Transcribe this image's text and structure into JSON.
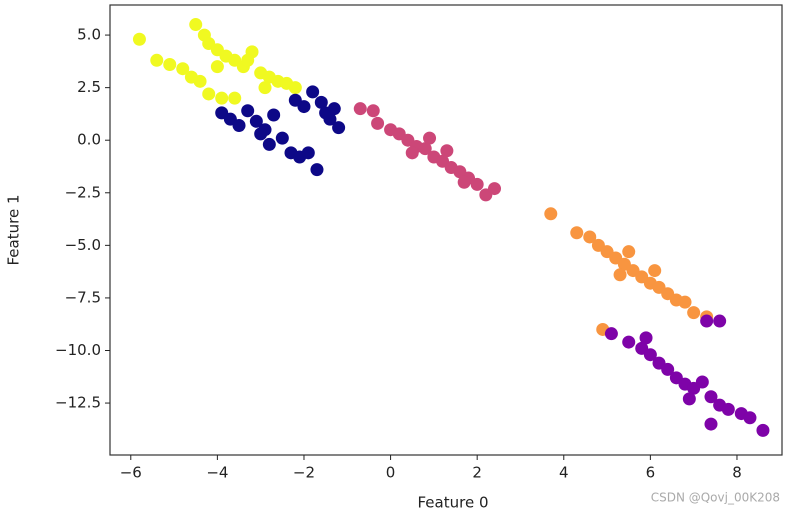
{
  "chart_data": {
    "type": "scatter",
    "x_label": "Feature 0",
    "y_label": "Feature 1",
    "xlim": [
      -6.48,
      9.04
    ],
    "ylim": [
      -14.97,
      6.43
    ],
    "xticks": [
      {
        "value": -6,
        "label": "−6"
      },
      {
        "value": -4,
        "label": "−4"
      },
      {
        "value": -2,
        "label": "−2"
      },
      0,
      2,
      4,
      6,
      8
    ],
    "yticks": [
      {
        "value": 5,
        "label": "5.0"
      },
      2.5,
      {
        "value": 0,
        "label": "0.0"
      },
      {
        "value": -2.5,
        "label": "−2.5"
      },
      {
        "value": -5,
        "label": "−5.0"
      },
      {
        "value": -7.5,
        "label": "−7.5"
      },
      {
        "value": -10,
        "label": "−10.0"
      },
      {
        "value": -12.5,
        "label": "−12.5"
      }
    ],
    "series": [
      {
        "color": "#f0f921",
        "x": [
          -5.8,
          -5.4,
          -5.1,
          -4.8,
          -4.5,
          -4.3,
          -4.2,
          -4.0,
          -3.8,
          -3.6,
          -3.4,
          -3.2,
          -3.0,
          -2.8,
          -2.6,
          -2.4,
          -2.2,
          -4.4,
          -4.2,
          -3.9,
          -3.6,
          -4.6,
          -3.3,
          -2.9,
          -4.0
        ],
        "values": [
          4.8,
          3.8,
          3.6,
          3.4,
          5.5,
          5.0,
          4.6,
          4.3,
          4.0,
          3.8,
          3.5,
          4.2,
          3.2,
          3.0,
          2.8,
          2.7,
          2.5,
          2.8,
          2.2,
          2.0,
          2.0,
          3.0,
          3.8,
          2.5,
          3.5
        ]
      },
      {
        "color": "#0d0887",
        "x": [
          -3.9,
          -3.7,
          -3.5,
          -3.3,
          -3.1,
          -2.9,
          -2.7,
          -2.5,
          -2.3,
          -2.1,
          -1.9,
          -1.7,
          -2.0,
          -1.8,
          -1.6,
          -1.4,
          -1.2,
          -1.5,
          -2.8,
          -3.0,
          -2.2,
          -1.3
        ],
        "values": [
          1.3,
          1.0,
          0.7,
          1.4,
          0.9,
          0.5,
          1.2,
          0.1,
          -0.6,
          -0.8,
          -0.6,
          -1.4,
          1.6,
          2.3,
          1.8,
          1.0,
          0.6,
          1.3,
          -0.2,
          0.3,
          1.9,
          1.5
        ]
      },
      {
        "color": "#cc4778",
        "x": [
          -0.7,
          -0.4,
          -0.3,
          0.0,
          0.2,
          0.4,
          0.6,
          0.8,
          1.0,
          1.2,
          1.4,
          1.6,
          1.8,
          2.0,
          2.2,
          2.4,
          0.9,
          1.3,
          0.5,
          1.7
        ],
        "values": [
          1.5,
          1.4,
          0.8,
          0.5,
          0.3,
          0.0,
          -0.3,
          -0.4,
          -0.8,
          -1.0,
          -1.3,
          -1.5,
          -1.8,
          -2.1,
          -2.6,
          -2.3,
          0.1,
          -0.5,
          -0.6,
          -2.0
        ]
      },
      {
        "color": "#f89540",
        "x": [
          3.7,
          4.3,
          4.6,
          4.8,
          5.0,
          5.2,
          5.4,
          5.6,
          5.8,
          6.0,
          6.2,
          6.4,
          6.6,
          6.8,
          7.0,
          7.3,
          4.9,
          5.5,
          6.1,
          5.3
        ],
        "values": [
          -3.5,
          -4.4,
          -4.6,
          -5.0,
          -5.3,
          -5.6,
          -5.9,
          -6.2,
          -6.5,
          -6.8,
          -7.0,
          -7.3,
          -7.6,
          -7.7,
          -8.2,
          -8.4,
          -9.0,
          -5.3,
          -6.2,
          -6.4
        ]
      },
      {
        "color": "#7e03a8",
        "x": [
          5.1,
          5.5,
          5.8,
          6.0,
          6.2,
          6.4,
          6.6,
          6.8,
          7.0,
          7.2,
          7.4,
          7.6,
          7.8,
          8.1,
          8.3,
          8.6,
          7.3,
          7.6,
          7.4,
          6.9,
          5.9
        ],
        "values": [
          -9.2,
          -9.6,
          -9.9,
          -10.2,
          -10.6,
          -10.9,
          -11.3,
          -11.6,
          -11.8,
          -11.5,
          -12.2,
          -12.6,
          -12.8,
          -13.0,
          -13.2,
          -13.8,
          -8.6,
          -8.6,
          -13.5,
          -12.3,
          -9.4
        ]
      }
    ]
  },
  "watermark": "CSDN @Qovj_00K208"
}
